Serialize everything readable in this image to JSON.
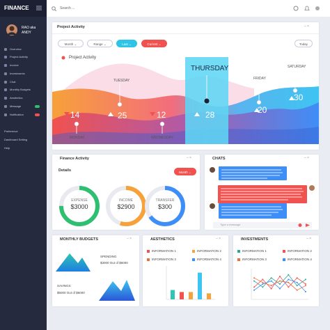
{
  "sidebar": {
    "brand": "FINANCE",
    "user": [
      "RAO aka",
      "ANDY"
    ],
    "menu": [
      "Overview",
      "Project Activity",
      "Invoice",
      "Investments",
      "Chat",
      "Monthly Budgets",
      "Aesthetics",
      "Message",
      "Notification"
    ],
    "footer_menu": [
      "Preference",
      "Dashboard Setting",
      "Help"
    ]
  },
  "topbar": {
    "search": "Search ..."
  },
  "project_activity": {
    "title": "Project Activity",
    "buttons": [
      "Month",
      "Range",
      "Last",
      "Current",
      "Today"
    ],
    "legend": "Project Activity",
    "days": [
      {
        "label": "MONDAY",
        "value": 14
      },
      {
        "label": "TUESDAY",
        "value": 25
      },
      {
        "label": "WEDNESDAY",
        "value": 12
      },
      {
        "label": "THURSDAY",
        "value": 28
      },
      {
        "label": "FRIDAY",
        "value": 20
      },
      {
        "label": "SATURDAY",
        "value": 30
      }
    ]
  },
  "finance_activity": {
    "title": "Finance Activity",
    "subtitle": "Details",
    "button": "Month",
    "items": [
      {
        "label": "EXPENSE",
        "amount": "$3000",
        "color": "#2fbf71"
      },
      {
        "label": "INCOME",
        "amount": "$2900",
        "color": "#f7a13a"
      },
      {
        "label": "TRANSFER",
        "amount": "$300",
        "color": "#3e8ef7"
      }
    ]
  },
  "chats": {
    "title": "CHATS",
    "input": "Type a message"
  },
  "monthly_budgets": {
    "title": "MONTHLY BUDGETS",
    "items": [
      {
        "label": "SPENDING",
        "detail": "$3000 Out of $6000"
      },
      {
        "label": "SAVINGS",
        "detail": "$5000 Out of $6000"
      }
    ]
  },
  "aesthetics": {
    "title": "AESTHETICS",
    "legend": [
      {
        "name": "INFORMATION 1",
        "color": "#f0524f"
      },
      {
        "name": "INFORMATION 2",
        "color": "#f7a13a"
      },
      {
        "name": "INFORMATION 3",
        "color": "#f26b3a"
      },
      {
        "name": "INFORMATION 4",
        "color": "#3e8ef7"
      }
    ],
    "bars": {
      "values": [
        28,
        22,
        22,
        80,
        18
      ],
      "colors": [
        "#2ec4b6",
        "#f0524f",
        "#f7a13a",
        "#3ec4f0",
        "#f7a13a"
      ],
      "ylim": [
        0,
        100
      ]
    }
  },
  "investments": {
    "title": "INVESTMENTS",
    "legend": [
      {
        "name": "INFORMATION 1",
        "color": "#25a79a"
      },
      {
        "name": "INFORMATION 2",
        "color": "#f0524f"
      },
      {
        "name": "INFORMATION 3",
        "color": "#f26b3a"
      },
      {
        "name": "INFORMATION 4",
        "color": "#3e8ef7"
      }
    ],
    "lines": {
      "ylim": [
        0,
        100
      ],
      "series": [
        {
          "color": "#25a79a",
          "values": [
            60,
            40,
            70,
            50,
            80,
            45,
            65
          ]
        },
        {
          "color": "#f0524f",
          "values": [
            40,
            65,
            35,
            75,
            40,
            70,
            50
          ]
        },
        {
          "color": "#f26b3a",
          "values": [
            70,
            55,
            45,
            60,
            55,
            30,
            45
          ]
        },
        {
          "color": "#3e8ef7",
          "values": [
            30,
            50,
            60,
            35,
            65,
            55,
            25
          ]
        }
      ]
    }
  }
}
